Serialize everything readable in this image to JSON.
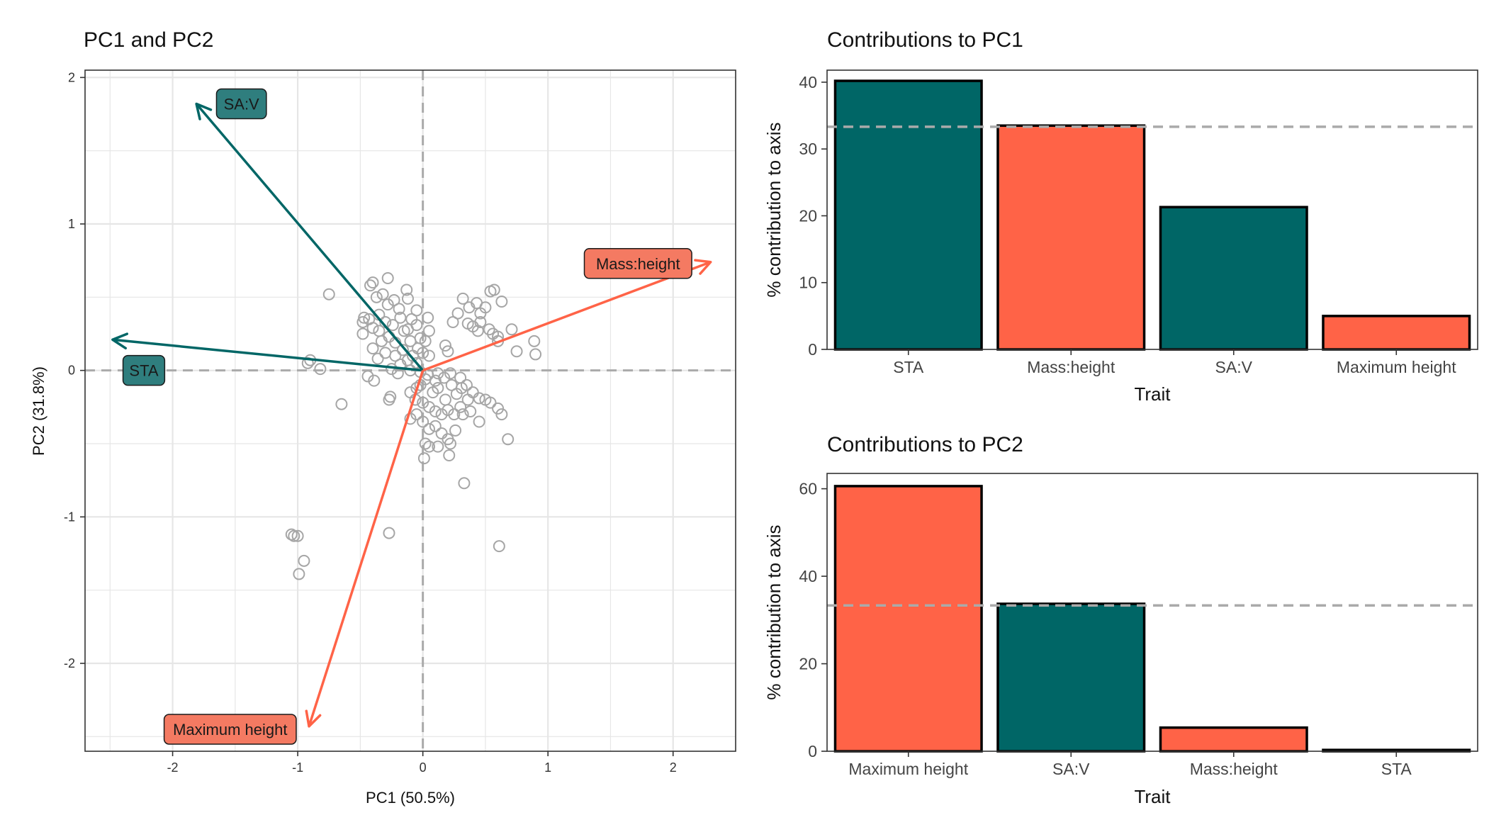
{
  "colors": {
    "teal": "#006666",
    "coral": "#ff6347",
    "coral_label": "#f47a62",
    "teal_label": "#2f7e7e",
    "points": "#a6a6a6",
    "grid": "#e6e6e6",
    "reference": "#aaaaaa"
  },
  "chart_data": [
    {
      "type": "scatter",
      "title": "PC1 and PC2",
      "xlabel": "PC1 (50.5%)",
      "ylabel": "PC2 (31.8%)",
      "xlim": [
        -2.7,
        2.5
      ],
      "ylim": [
        -2.6,
        2.05
      ],
      "xticks": [
        "-2",
        "-1",
        "0",
        "1",
        "2"
      ],
      "yticks": [
        "2",
        "1",
        "0",
        "-1",
        "-2"
      ],
      "grid": true,
      "reference_lines": {
        "x": 0,
        "y": 0
      },
      "arrows": [
        {
          "name": "SA:V",
          "x": -1.81,
          "y": 1.82,
          "color": "teal",
          "label_pos": [
            -1.45,
            1.82
          ]
        },
        {
          "name": "Mass:height",
          "x": 2.3,
          "y": 0.74,
          "color": "coral",
          "label_pos": [
            1.72,
            0.73
          ]
        },
        {
          "name": "STA",
          "x": -2.48,
          "y": 0.21,
          "color": "teal",
          "label_pos": [
            -2.23,
            0.0
          ]
        },
        {
          "name": "Maximum height",
          "x": -0.91,
          "y": -2.43,
          "color": "coral",
          "label_pos": [
            -1.54,
            -2.45
          ]
        }
      ],
      "points": [
        [
          -0.28,
          0.63
        ],
        [
          -0.4,
          0.6
        ],
        [
          -0.42,
          0.58
        ],
        [
          -0.75,
          0.52
        ],
        [
          -0.32,
          0.52
        ],
        [
          -0.37,
          0.5
        ],
        [
          -0.28,
          0.45
        ],
        [
          -0.13,
          0.55
        ],
        [
          -0.12,
          0.49
        ],
        [
          -0.19,
          0.42
        ],
        [
          -0.23,
          0.48
        ],
        [
          -0.47,
          0.36
        ],
        [
          -0.48,
          0.33
        ],
        [
          -0.43,
          0.35
        ],
        [
          -0.35,
          0.38
        ],
        [
          -0.3,
          0.33
        ],
        [
          -0.24,
          0.31
        ],
        [
          -0.18,
          0.36
        ],
        [
          -0.09,
          0.35
        ],
        [
          -0.12,
          0.28
        ],
        [
          -0.05,
          0.31
        ],
        [
          -0.48,
          0.25
        ],
        [
          -0.4,
          0.29
        ],
        [
          -0.35,
          0.27
        ],
        [
          -0.27,
          0.23
        ],
        [
          -0.33,
          0.2
        ],
        [
          -0.22,
          0.19
        ],
        [
          -0.16,
          0.14
        ],
        [
          -0.1,
          0.2
        ],
        [
          -0.04,
          0.15
        ],
        [
          0.02,
          0.2
        ],
        [
          0.05,
          0.1
        ],
        [
          0.0,
          0.12
        ],
        [
          -0.05,
          0.05
        ],
        [
          -0.12,
          0.07
        ],
        [
          -0.22,
          0.1
        ],
        [
          -0.3,
          0.12
        ],
        [
          -0.36,
          0.08
        ],
        [
          -0.4,
          0.15
        ],
        [
          -0.18,
          0.04
        ],
        [
          -0.25,
          0.01
        ],
        [
          -0.1,
          0.0
        ],
        [
          -0.2,
          -0.02
        ],
        [
          0.04,
          0.36
        ],
        [
          0.05,
          0.27
        ],
        [
          0.18,
          0.17
        ],
        [
          0.2,
          0.13
        ],
        [
          0.24,
          0.33
        ],
        [
          0.28,
          0.39
        ],
        [
          0.32,
          0.49
        ],
        [
          0.37,
          0.43
        ],
        [
          0.43,
          0.46
        ],
        [
          0.46,
          0.39
        ],
        [
          0.5,
          0.43
        ],
        [
          0.54,
          0.54
        ],
        [
          0.57,
          0.55
        ],
        [
          0.63,
          0.47
        ],
        [
          0.36,
          0.32
        ],
        [
          0.4,
          0.3
        ],
        [
          0.46,
          0.33
        ],
        [
          0.53,
          0.28
        ],
        [
          0.56,
          0.25
        ],
        [
          0.6,
          0.23
        ],
        [
          0.71,
          0.28
        ],
        [
          0.75,
          0.13
        ],
        [
          0.89,
          0.2
        ],
        [
          0.9,
          0.11
        ],
        [
          0.6,
          0.2
        ],
        [
          0.44,
          0.27
        ],
        [
          -0.92,
          0.05
        ],
        [
          -0.9,
          0.07
        ],
        [
          -0.82,
          0.01
        ],
        [
          -0.44,
          -0.04
        ],
        [
          -0.39,
          -0.07
        ],
        [
          -0.65,
          -0.23
        ],
        [
          -0.26,
          -0.18
        ],
        [
          -0.27,
          -0.2
        ],
        [
          -0.1,
          -0.15
        ],
        [
          -0.05,
          -0.12
        ],
        [
          0.04,
          -0.03
        ],
        [
          0.1,
          -0.07
        ],
        [
          0.17,
          -0.05
        ],
        [
          0.22,
          -0.02
        ],
        [
          0.3,
          -0.05
        ],
        [
          0.35,
          -0.1
        ],
        [
          0.4,
          -0.15
        ],
        [
          0.45,
          -0.19
        ],
        [
          0.5,
          -0.2
        ],
        [
          0.54,
          -0.22
        ],
        [
          0.45,
          -0.35
        ],
        [
          0.6,
          -0.26
        ],
        [
          0.63,
          -0.3
        ],
        [
          0.68,
          -0.47
        ],
        [
          0.0,
          -0.22
        ],
        [
          0.05,
          -0.25
        ],
        [
          0.1,
          -0.28
        ],
        [
          0.15,
          -0.3
        ],
        [
          0.2,
          -0.27
        ],
        [
          0.25,
          -0.3
        ],
        [
          0.3,
          -0.25
        ],
        [
          0.32,
          -0.3
        ],
        [
          0.38,
          -0.28
        ],
        [
          -0.1,
          -0.33
        ],
        [
          -0.05,
          -0.3
        ],
        [
          0.0,
          -0.35
        ],
        [
          0.05,
          -0.4
        ],
        [
          0.1,
          -0.38
        ],
        [
          0.15,
          -0.43
        ],
        [
          0.2,
          -0.47
        ],
        [
          0.22,
          -0.5
        ],
        [
          0.02,
          -0.5
        ],
        [
          0.05,
          -0.52
        ],
        [
          0.01,
          -0.6
        ],
        [
          0.12,
          -0.52
        ],
        [
          0.21,
          -0.58
        ],
        [
          0.26,
          -0.41
        ],
        [
          0.33,
          -0.77
        ],
        [
          0.08,
          -0.15
        ],
        [
          0.12,
          -0.12
        ],
        [
          0.18,
          -0.2
        ],
        [
          0.23,
          -0.1
        ],
        [
          0.27,
          -0.16
        ],
        [
          0.31,
          -0.12
        ],
        [
          0.36,
          -0.2
        ],
        [
          -0.02,
          -0.1
        ],
        [
          0.02,
          -0.06
        ],
        [
          -0.06,
          -0.2
        ],
        [
          0.12,
          -0.02
        ],
        [
          -1.05,
          -1.12
        ],
        [
          -1.03,
          -1.13
        ],
        [
          -1.0,
          -1.13
        ],
        [
          -0.95,
          -1.3
        ],
        [
          -0.99,
          -1.39
        ],
        [
          -0.27,
          -1.11
        ],
        [
          0.61,
          -1.2
        ],
        [
          -0.05,
          0.41
        ],
        [
          -0.02,
          0.22
        ],
        [
          -0.15,
          0.27
        ],
        [
          -0.02,
          -0.01
        ],
        [
          -0.08,
          0.1
        ]
      ]
    },
    {
      "type": "bar",
      "title": "Contributions to PC1",
      "xlabel": "Trait",
      "ylabel": "% contribution to axis",
      "categories": [
        "STA",
        "Mass:height",
        "SA:V",
        "Maximum height"
      ],
      "values": [
        40.2,
        33.5,
        21.3,
        5.0
      ],
      "bar_colors": [
        "teal",
        "coral",
        "teal",
        "coral"
      ],
      "ylim": [
        0,
        41.8
      ],
      "yticks": [
        0,
        10,
        20,
        30,
        40
      ],
      "reference_line": 33.33
    },
    {
      "type": "bar",
      "title": "Contributions to PC2",
      "xlabel": "Trait",
      "ylabel": "% contribution to axis",
      "categories": [
        "Maximum height",
        "SA:V",
        "Mass:height",
        "STA"
      ],
      "values": [
        60.6,
        33.7,
        5.4,
        0.3
      ],
      "bar_colors": [
        "coral",
        "teal",
        "coral",
        "teal"
      ],
      "ylim": [
        0,
        63.5
      ],
      "yticks": [
        0,
        20,
        40,
        60
      ],
      "reference_line": 33.33
    }
  ]
}
